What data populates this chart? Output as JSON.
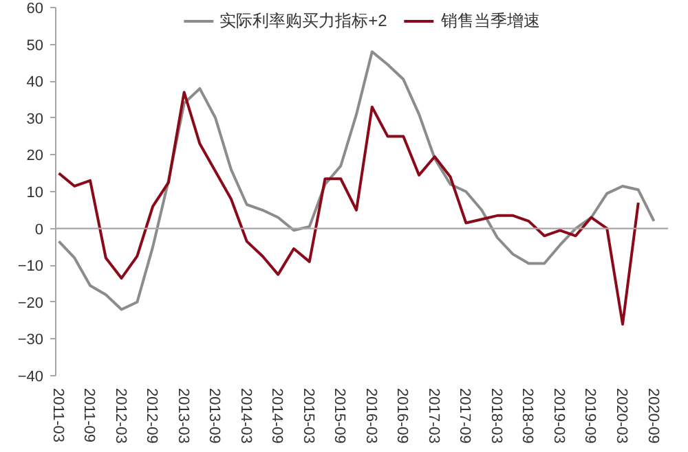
{
  "chart_data": {
    "type": "line",
    "categories": [
      "2011-03",
      null,
      "2011-09",
      null,
      "2012-03",
      null,
      "2012-09",
      null,
      "2013-03",
      null,
      "2013-09",
      null,
      "2014-03",
      null,
      "2014-09",
      null,
      "2015-03",
      null,
      "2015-09",
      null,
      "2016-03",
      null,
      "2016-09",
      null,
      "2017-03",
      null,
      "2017-09",
      null,
      "2018-03",
      null,
      "2018-09",
      null,
      "2019-03",
      null,
      "2019-09",
      null,
      "2020-03",
      null,
      "2020-09"
    ],
    "series": [
      {
        "name": "实际利率购买力指标+2",
        "color": "#8c8c8c",
        "values": [
          -3.5,
          -8,
          -15.5,
          -18,
          -22,
          -20,
          -5,
          13,
          34,
          38,
          30,
          16,
          6.5,
          5,
          3,
          -0.5,
          0.5,
          12,
          17,
          31,
          48,
          44.5,
          40.5,
          31,
          19,
          12,
          10,
          5,
          -2.5,
          -7,
          -9.5,
          -9.5,
          -4.5,
          0,
          3,
          9.5,
          11.5,
          10.5,
          2
        ]
      },
      {
        "name": "销售当季增速",
        "color": "#8b0a1a",
        "values": [
          15,
          11.5,
          13,
          -8,
          -13.5,
          -7.5,
          6,
          12.5,
          37,
          23,
          15.5,
          8,
          -3.5,
          -7.5,
          -12.5,
          -5.5,
          -9,
          13.5,
          13.5,
          5,
          33,
          25,
          25,
          14.5,
          19.5,
          14,
          1.5,
          2.5,
          3.5,
          3.5,
          2,
          -2,
          -0.5,
          -2,
          3,
          0,
          -26,
          7,
          null
        ]
      }
    ],
    "ylim": [
      -40,
      60
    ],
    "yticks": [
      -40,
      -30,
      -20,
      -10,
      0,
      10,
      20,
      30,
      40,
      50,
      60
    ],
    "ref_lines": [
      {
        "axis": "y",
        "value": 0,
        "color": "#a6a6a6"
      }
    ],
    "grid": false,
    "legend": "top",
    "marker": "none",
    "line_style": "solid"
  }
}
